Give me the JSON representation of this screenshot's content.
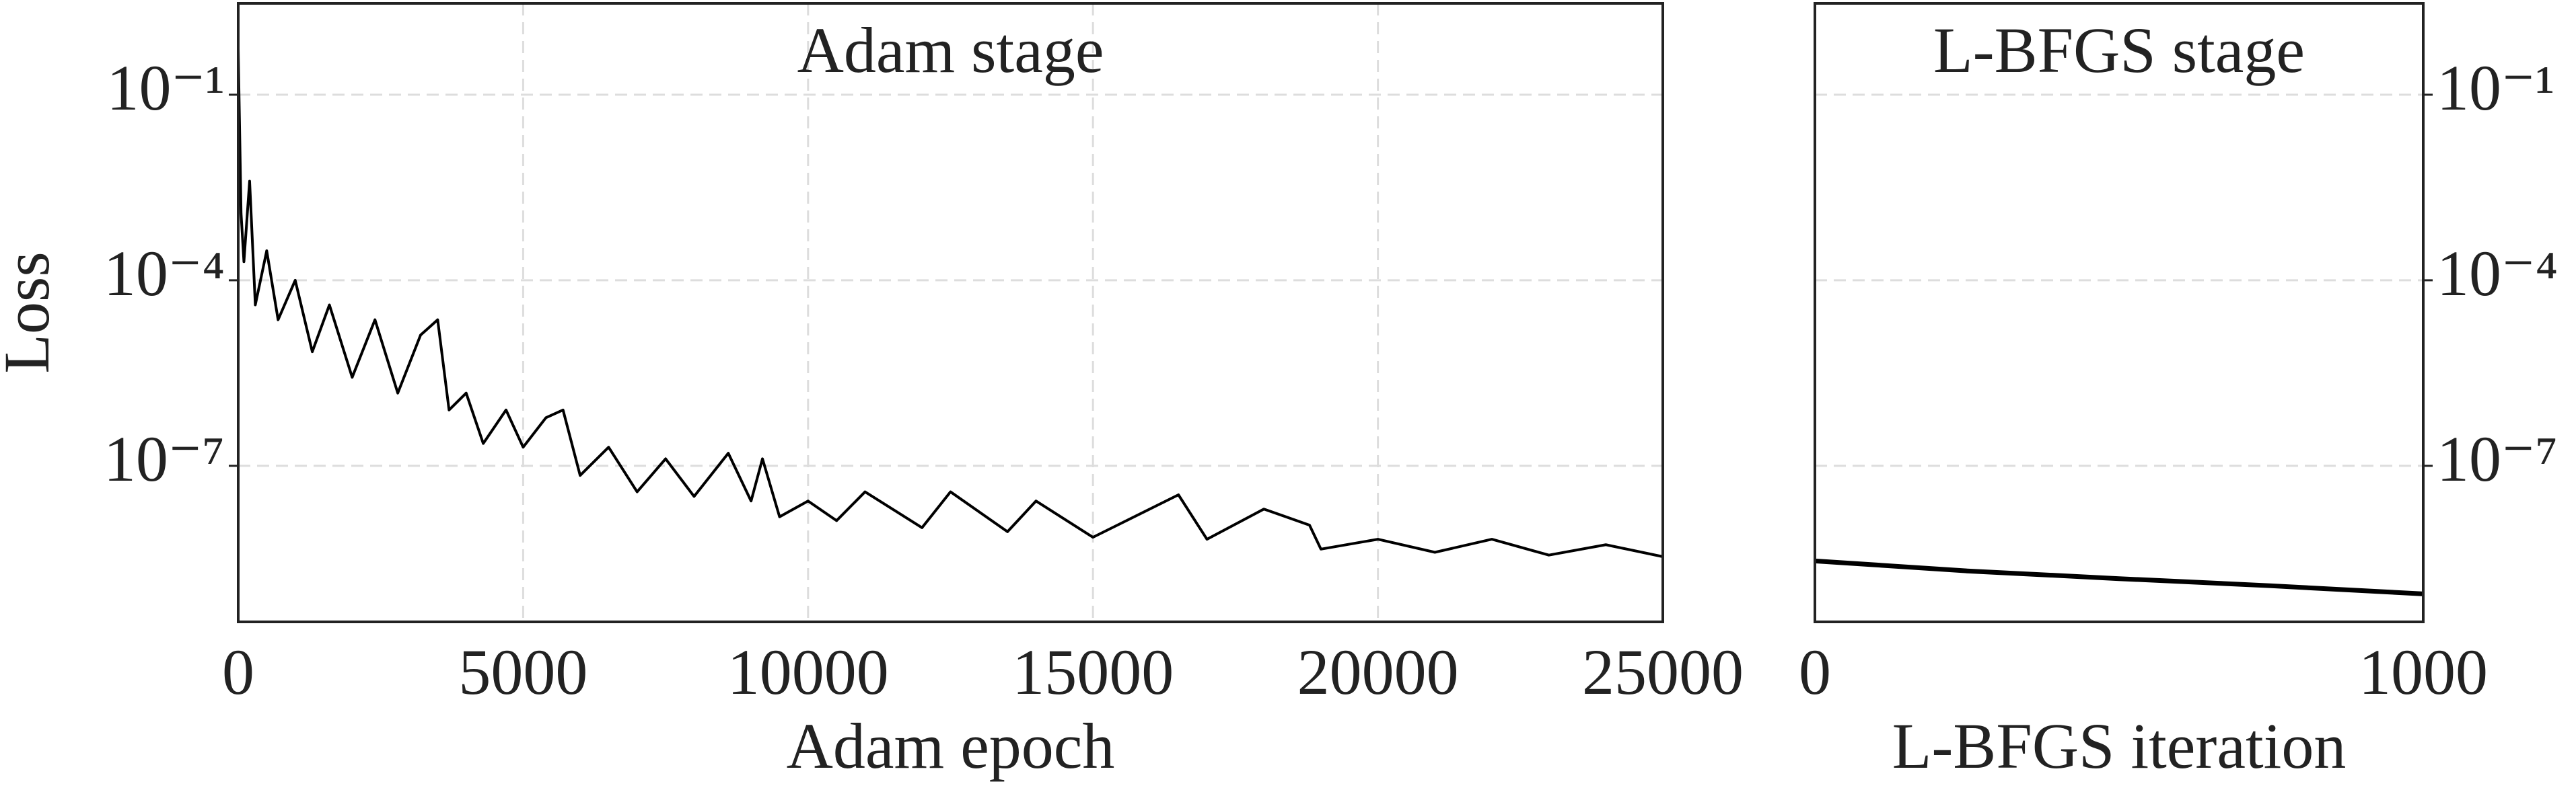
{
  "chart_data": [
    {
      "type": "line",
      "title": "Adam stage",
      "x_label": "Adam epoch",
      "y_label": "Loss",
      "log_y": true,
      "grid": true,
      "yaxis_position": "left",
      "xlim": [
        0,
        25000
      ],
      "xticks": [
        0,
        5000,
        10000,
        15000,
        20000,
        25000
      ],
      "ylim": [
        3e-10,
        3
      ],
      "yticks": [
        {
          "value": 0.1,
          "label": "10⁻¹"
        },
        {
          "value": 0.0001,
          "label": "10⁻⁴"
        },
        {
          "value": 1e-07,
          "label": "10⁻⁷"
        }
      ],
      "series": [
        {
          "name": "Loss",
          "color": "#000000",
          "x": [
            0,
            50,
            100,
            200,
            300,
            500,
            700,
            1000,
            1300,
            1600,
            2000,
            2400,
            2800,
            3200,
            3500,
            3700,
            4000,
            4300,
            4700,
            5000,
            5400,
            5700,
            6000,
            6500,
            7000,
            7500,
            8000,
            8600,
            9000,
            9200,
            9500,
            10000,
            10500,
            11000,
            12000,
            12500,
            13500,
            14000,
            15000,
            16500,
            17000,
            18000,
            18800,
            19000,
            20000,
            21000,
            22000,
            23000,
            24000,
            25000
          ],
          "values": [
            0.55,
            0.0012,
            0.0002,
            0.004,
            4e-05,
            0.0003,
            2.3e-05,
            0.0001,
            7e-06,
            4e-05,
            2.7e-06,
            2.3e-05,
            1.5e-06,
            1.3e-05,
            2.3e-05,
            8e-07,
            1.5e-06,
            2.3e-07,
            8e-07,
            2e-07,
            6e-07,
            8e-07,
            7e-08,
            2e-07,
            3.8e-08,
            1.3e-07,
            3.2e-08,
            1.6e-07,
            2.7e-08,
            1.3e-07,
            1.5e-08,
            2.7e-08,
            1.3e-08,
            3.8e-08,
            1e-08,
            3.8e-08,
            8.6e-09,
            2.7e-08,
            7e-09,
            3.4e-08,
            6.5e-09,
            2e-08,
            1.1e-08,
            4.5e-09,
            6.5e-09,
            4e-09,
            6.5e-09,
            3.6e-09,
            5.3e-09,
            3.4e-09
          ]
        }
      ]
    },
    {
      "type": "line",
      "title": "L-BFGS stage",
      "x_label": "L-BFGS iteration",
      "log_y": true,
      "grid": true,
      "yaxis_position": "right",
      "xlim": [
        0,
        1000
      ],
      "xticks": [
        0,
        1000
      ],
      "ylim": [
        3e-10,
        3
      ],
      "yticks": [
        {
          "value": 0.1,
          "label": "10⁻¹"
        },
        {
          "value": 0.0001,
          "label": "10⁻⁴"
        },
        {
          "value": 1e-07,
          "label": "10⁻⁷"
        }
      ],
      "series": [
        {
          "name": "Loss",
          "color": "#000000",
          "x": [
            0,
            100,
            250,
            500,
            750,
            1000
          ],
          "values": [
            2.9e-09,
            2.5e-09,
            2e-09,
            1.5e-09,
            1.15e-09,
            8.5e-10
          ]
        }
      ]
    }
  ]
}
